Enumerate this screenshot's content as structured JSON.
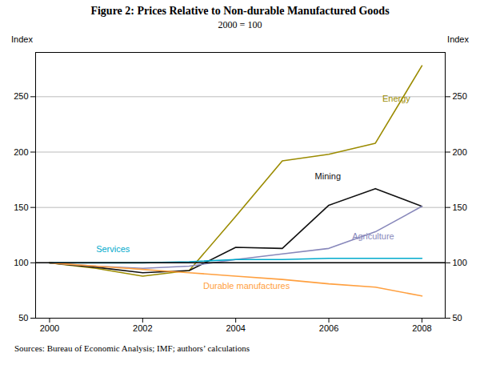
{
  "chart_data": {
    "type": "line",
    "title": "Figure 2: Prices Relative to Non-durable Manufactured Goods",
    "subtitle": "2000 = 100",
    "ylabel": "Index",
    "y2label": "Index",
    "source": "Sources:  Bureau of Economic Analysis; IMF; authors’ calculations",
    "x": [
      2000,
      2001,
      2002,
      2003,
      2004,
      2005,
      2006,
      2007,
      2008
    ],
    "series": [
      {
        "name": "Energy",
        "color": "#9B8B00",
        "values": [
          100,
          95,
          88,
          93,
          142,
          192,
          198,
          208,
          278
        ]
      },
      {
        "name": "Mining",
        "color": "#111111",
        "values": [
          100,
          96,
          91,
          93,
          114,
          113,
          152,
          167,
          151
        ]
      },
      {
        "name": "Agriculture",
        "color": "#8888BB",
        "values": [
          100,
          97,
          95,
          97,
          103,
          108,
          113,
          128,
          151
        ]
      },
      {
        "name": "Services",
        "color": "#00AACC",
        "values": [
          100,
          100,
          100,
          101,
          103,
          103,
          104,
          104,
          104
        ]
      },
      {
        "name": "Durable manufactures",
        "color": "#FFA040",
        "values": [
          100,
          97,
          94,
          91,
          88,
          85,
          81,
          78,
          70
        ]
      }
    ],
    "annotations": [
      {
        "text": "Energy",
        "x": 2007.15,
        "y": 248,
        "color": "#9B8B00"
      },
      {
        "text": "Mining",
        "x": 2005.7,
        "y": 178,
        "color": "#111111"
      },
      {
        "text": "Agriculture",
        "x": 2006.5,
        "y": 124,
        "color": "#8888BB"
      },
      {
        "text": "Services",
        "x": 2001.0,
        "y": 112,
        "color": "#00AACC"
      },
      {
        "text": "Durable manufactures",
        "x": 2003.3,
        "y": 79,
        "color": "#FFA040"
      }
    ],
    "baseline": 100,
    "xlim": [
      1999.7,
      2008.5
    ],
    "xticks": [
      2000,
      2002,
      2004,
      2006,
      2008
    ],
    "ylim": [
      50,
      290
    ],
    "yticks": [
      50,
      100,
      150,
      200,
      250
    ],
    "y2lim": [
      50,
      290
    ],
    "y2ticks": [
      50,
      100,
      150,
      200,
      250
    ],
    "grid": true
  }
}
